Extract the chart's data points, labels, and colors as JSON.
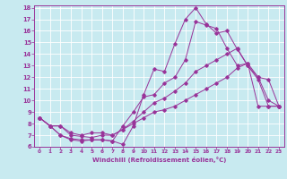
{
  "xlabel": "Windchill (Refroidissement éolien,°C)",
  "background_color": "#c8eaf0",
  "grid_color": "#ffffff",
  "line_color": "#993399",
  "spine_color": "#993399",
  "xlim": [
    -0.5,
    23.5
  ],
  "ylim": [
    6,
    18.2
  ],
  "xticks": [
    0,
    1,
    2,
    3,
    4,
    5,
    6,
    7,
    8,
    9,
    10,
    11,
    12,
    13,
    14,
    15,
    16,
    17,
    18,
    19,
    20,
    21,
    22,
    23
  ],
  "yticks": [
    6,
    7,
    8,
    9,
    10,
    11,
    12,
    13,
    14,
    15,
    16,
    17,
    18
  ],
  "line1_x": [
    0,
    1,
    2,
    3,
    4,
    5,
    6,
    7,
    8,
    9,
    10,
    11,
    12,
    13,
    14,
    15,
    16,
    17,
    18,
    19,
    20,
    21,
    22,
    23
  ],
  "line1_y": [
    8.5,
    7.8,
    7.0,
    6.6,
    6.5,
    6.6,
    6.6,
    6.5,
    6.2,
    7.8,
    10.5,
    12.7,
    12.5,
    14.9,
    17.0,
    18.0,
    16.6,
    15.8,
    16.0,
    14.4,
    13.0,
    11.8,
    9.5,
    9.5
  ],
  "line2_x": [
    0,
    1,
    2,
    3,
    4,
    5,
    6,
    7,
    8,
    9,
    10,
    11,
    12,
    13,
    14,
    15,
    16,
    17,
    18,
    19,
    20,
    21,
    22,
    23
  ],
  "line2_y": [
    8.5,
    7.8,
    7.0,
    6.7,
    6.6,
    6.6,
    6.6,
    6.5,
    7.8,
    9.0,
    10.3,
    10.5,
    11.5,
    12.0,
    13.5,
    16.8,
    16.5,
    16.2,
    14.5,
    13.0,
    13.2,
    12.0,
    10.0,
    9.5
  ],
  "line3_x": [
    0,
    1,
    2,
    3,
    4,
    5,
    6,
    7,
    8,
    9,
    10,
    11,
    12,
    13,
    14,
    15,
    16,
    17,
    18,
    19,
    20,
    21,
    22,
    23
  ],
  "line3_y": [
    8.5,
    7.8,
    7.8,
    7.0,
    6.9,
    6.8,
    7.0,
    7.0,
    7.5,
    8.2,
    9.0,
    9.8,
    10.2,
    10.8,
    11.5,
    12.5,
    13.0,
    13.5,
    14.0,
    14.5,
    13.0,
    12.0,
    11.8,
    9.5
  ],
  "line4_x": [
    0,
    1,
    2,
    3,
    4,
    5,
    6,
    7,
    8,
    9,
    10,
    11,
    12,
    13,
    14,
    15,
    16,
    17,
    18,
    19,
    20,
    21,
    22,
    23
  ],
  "line4_y": [
    8.5,
    7.8,
    7.8,
    7.2,
    7.0,
    7.2,
    7.2,
    7.0,
    7.5,
    8.0,
    8.5,
    9.0,
    9.2,
    9.5,
    10.0,
    10.5,
    11.0,
    11.5,
    12.0,
    12.8,
    13.2,
    9.5,
    9.5,
    9.5
  ]
}
